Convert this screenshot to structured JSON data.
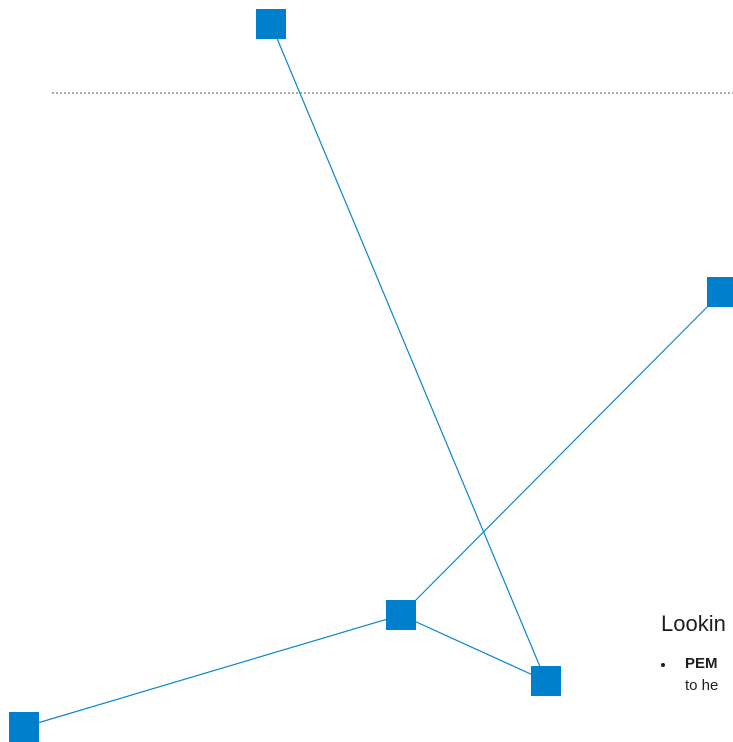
{
  "diagram": {
    "node_color": "#0080cc",
    "edge_color": "#0a86d0",
    "guide_line_color": "#555555",
    "nodes": [
      "node-a",
      "node-b",
      "node-c",
      "node-d",
      "node-e",
      "node-f"
    ],
    "edges": [
      [
        "node-a",
        "node-e"
      ],
      [
        "node-b",
        "node-d"
      ],
      [
        "node-d",
        "node-e"
      ],
      [
        "node-d",
        "node-f"
      ]
    ]
  },
  "text": {
    "heading": "Lookin",
    "bullet": "PEM",
    "subline": "to he"
  }
}
